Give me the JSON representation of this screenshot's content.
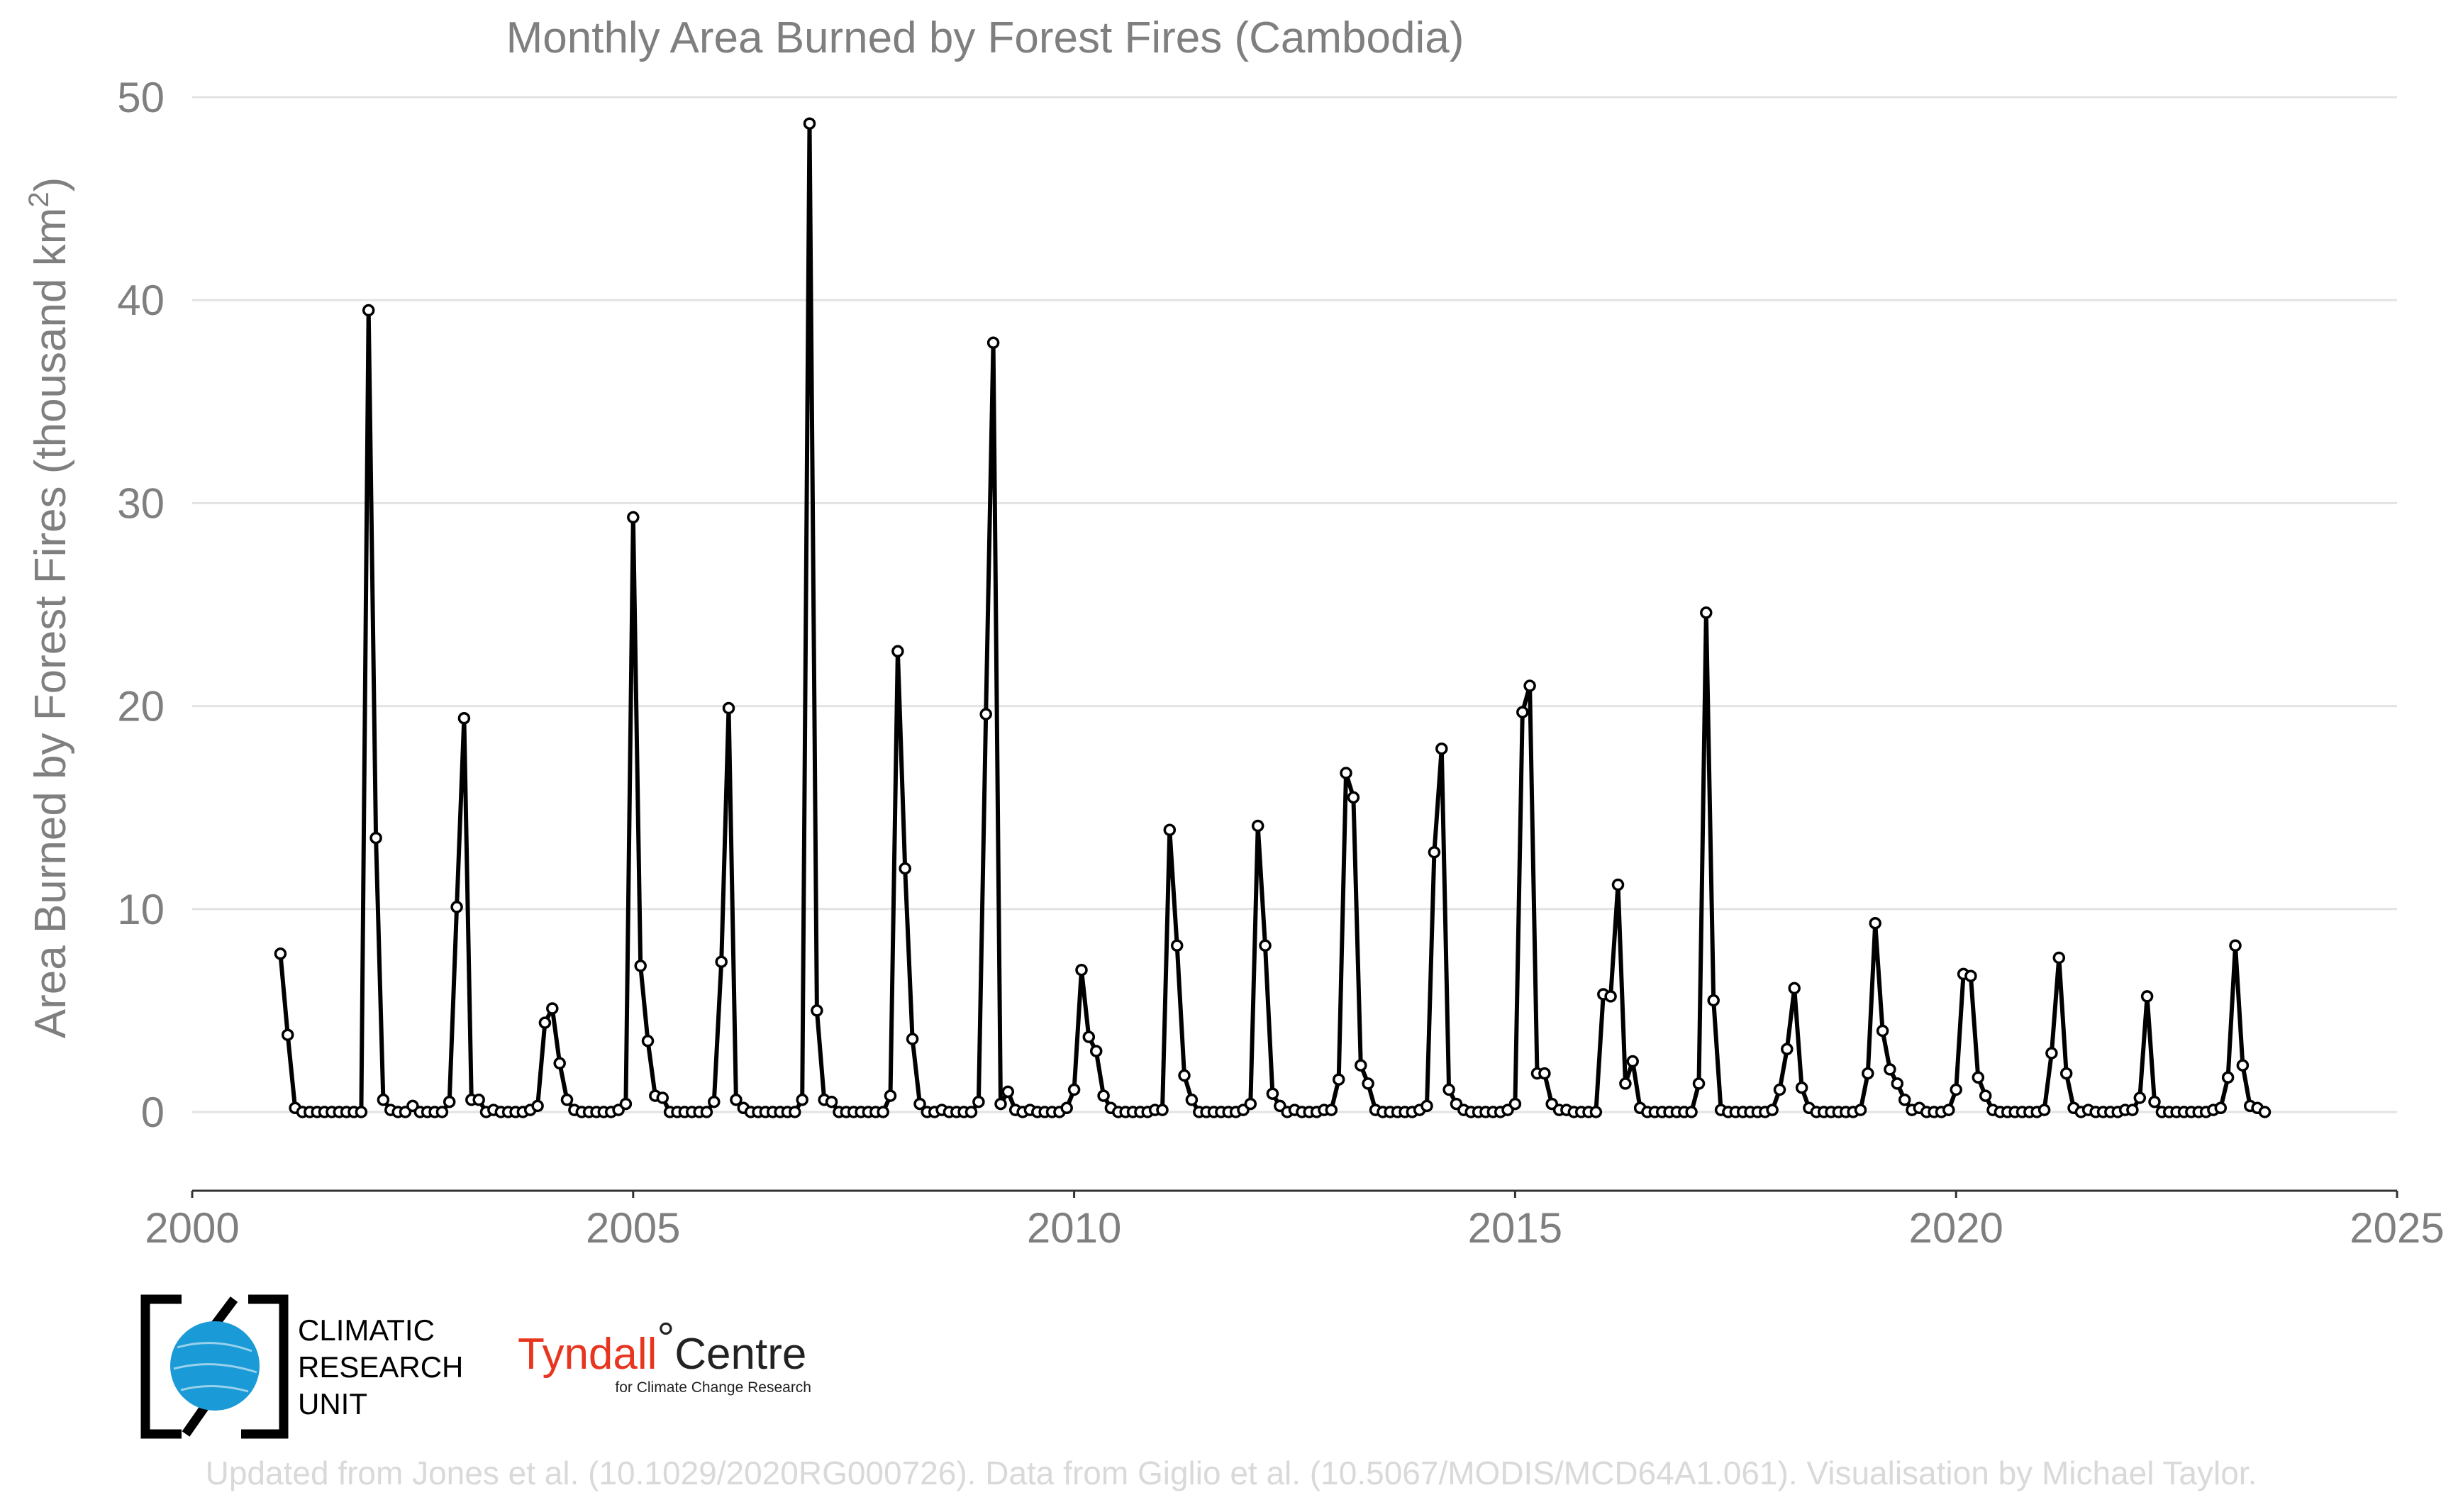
{
  "chart_data": {
    "type": "line",
    "title": "Monthly Area Burned by Forest Fires (Cambodia)",
    "ylabel": "Area Burned by Forest Fires (thousand km²)",
    "xlabel": "",
    "xlim": [
      2000,
      2025
    ],
    "ylim": [
      -4,
      50
    ],
    "x_ticks": [
      2000,
      2005,
      2010,
      2015,
      2020,
      2025
    ],
    "x_tick_labels": [
      "2000",
      "2005",
      "2010",
      "2015",
      "2020",
      "2025"
    ],
    "y_ticks": [
      0,
      10,
      20,
      30,
      40,
      50
    ],
    "y_tick_labels": [
      "0",
      "10",
      "20",
      "30",
      "40",
      "50"
    ],
    "grid": "horizontal",
    "x_start": "2001-01",
    "x_step": "monthly",
    "series": [
      {
        "values": [
          7.8,
          3.8,
          0.2,
          0.0,
          0.0,
          0.0,
          0.0,
          0.0,
          0.0,
          0.0,
          0.0,
          0.0,
          39.5,
          13.5,
          0.6,
          0.1,
          0.0,
          0.0,
          0.3,
          0.0,
          0.0,
          0.0,
          0.0,
          0.5,
          10.1,
          19.4,
          0.6,
          0.6,
          0.0,
          0.1,
          0.0,
          0.0,
          0.0,
          0.0,
          0.1,
          0.3,
          4.4,
          5.1,
          2.4,
          0.6,
          0.1,
          0.0,
          0.0,
          0.0,
          0.0,
          0.0,
          0.1,
          0.4,
          29.3,
          7.2,
          3.5,
          0.8,
          0.7,
          0.0,
          0.0,
          0.0,
          0.0,
          0.0,
          0.0,
          0.5,
          7.4,
          19.9,
          0.6,
          0.2,
          0.0,
          0.0,
          0.0,
          0.0,
          0.0,
          0.0,
          0.0,
          0.6,
          48.7,
          5.0,
          0.6,
          0.5,
          0.0,
          0.0,
          0.0,
          0.0,
          0.0,
          0.0,
          0.0,
          0.8,
          22.7,
          12.0,
          3.6,
          0.4,
          0.0,
          0.0,
          0.1,
          0.0,
          0.0,
          0.0,
          0.0,
          0.5,
          19.6,
          37.9,
          0.4,
          1.0,
          0.1,
          0.0,
          0.1,
          0.0,
          0.0,
          0.0,
          0.0,
          0.2,
          1.1,
          7.0,
          3.7,
          3.0,
          0.8,
          0.2,
          0.0,
          0.0,
          0.0,
          0.0,
          0.0,
          0.1,
          0.1,
          13.9,
          8.2,
          1.8,
          0.6,
          0.0,
          0.0,
          0.0,
          0.0,
          0.0,
          0.0,
          0.1,
          0.4,
          14.1,
          8.2,
          0.9,
          0.3,
          0.0,
          0.1,
          0.0,
          0.0,
          0.0,
          0.1,
          0.1,
          1.6,
          16.7,
          15.5,
          2.3,
          1.4,
          0.1,
          0.0,
          0.0,
          0.0,
          0.0,
          0.0,
          0.1,
          0.3,
          12.8,
          17.9,
          1.1,
          0.4,
          0.1,
          0.0,
          0.0,
          0.0,
          0.0,
          0.0,
          0.1,
          0.4,
          19.7,
          21.0,
          1.9,
          1.9,
          0.4,
          0.1,
          0.1,
          0.0,
          0.0,
          0.0,
          0.0,
          5.8,
          5.7,
          11.2,
          1.4,
          2.5,
          0.2,
          0.0,
          0.0,
          0.0,
          0.0,
          0.0,
          0.0,
          0.0,
          1.4,
          24.6,
          5.5,
          0.1,
          0.0,
          0.0,
          0.0,
          0.0,
          0.0,
          0.0,
          0.1,
          1.1,
          3.1,
          6.1,
          1.2,
          0.2,
          0.0,
          0.0,
          0.0,
          0.0,
          0.0,
          0.0,
          0.1,
          1.9,
          9.3,
          4.0,
          2.1,
          1.4,
          0.6,
          0.1,
          0.2,
          0.0,
          0.0,
          0.0,
          0.1,
          1.1,
          6.8,
          6.7,
          1.7,
          0.8,
          0.1,
          0.0,
          0.0,
          0.0,
          0.0,
          0.0,
          0.0,
          0.1,
          2.9,
          7.6,
          1.9,
          0.2,
          0.0,
          0.1,
          0.0,
          0.0,
          0.0,
          0.0,
          0.1,
          0.1,
          0.7,
          5.7,
          0.5,
          0.0,
          0.0,
          0.0,
          0.0,
          0.0,
          0.0,
          0.0,
          0.1,
          0.2,
          1.7,
          8.2,
          2.3,
          0.3,
          0.2,
          0.0
        ]
      }
    ]
  },
  "footer": {
    "credit": "Updated from Jones et al. (10.1029/2020RG000726). Data from Giglio et al. (10.5067/MODIS/MCD64A1.061). Visualisation by Michael Taylor."
  },
  "logos": {
    "cru_line1": "CLIMATIC",
    "cru_line2": "RESEARCH",
    "cru_line3": "UNIT",
    "tyndall_name": "Tyndall",
    "tyndall_degree": "°",
    "tyndall_centre": "Centre",
    "tyndall_sub": "for Climate Change Research"
  },
  "colors": {
    "line": "#000000",
    "marker_fill": "#ffffff",
    "text": "#7f7f7f",
    "grid": "#e3e3e3",
    "footer_text": "#d9d9d9",
    "cru_globe": "#1a9ad6",
    "tyndall_red": "#e8351f"
  }
}
